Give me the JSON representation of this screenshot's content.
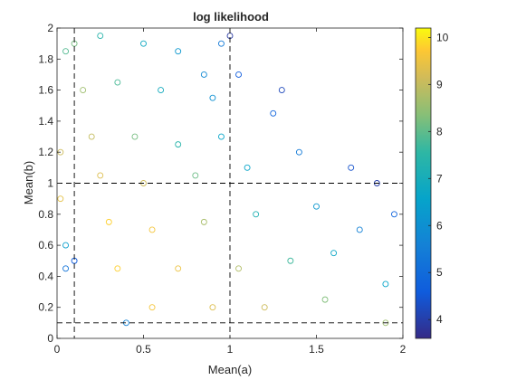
{
  "chart_data": {
    "type": "scatter",
    "title": "log likelihood",
    "xlabel": "Mean(a)",
    "ylabel": "Mean(b)",
    "xlim": [
      0,
      2
    ],
    "ylim": [
      0,
      2
    ],
    "xticks": [
      "0",
      "0.5",
      "1",
      "1.5",
      "2"
    ],
    "yticks": [
      "0",
      "0.2",
      "0.4",
      "0.6",
      "0.8",
      "1",
      "1.2",
      "1.4",
      "1.6",
      "1.8",
      "2"
    ],
    "colorbar": {
      "min": 3.6,
      "max": 10.2,
      "ticks": [
        "4",
        "5",
        "6",
        "7",
        "8",
        "9",
        "10"
      ],
      "colormap": "parula"
    },
    "reference_lines": {
      "vertical_x": [
        0.1,
        1
      ],
      "horizontal_y": [
        0.1,
        1
      ],
      "style": "dashed",
      "color": "#000000"
    },
    "marker": "open-circle",
    "grid": false,
    "points": [
      [
        0.1,
        1.9,
        8.2
      ],
      [
        0.25,
        1.95,
        7.4
      ],
      [
        0.5,
        1.9,
        6.8
      ],
      [
        0.7,
        1.85,
        6.2
      ],
      [
        0.95,
        1.9,
        5.4
      ],
      [
        0.15,
        1.6,
        8.6
      ],
      [
        0.35,
        1.65,
        7.8
      ],
      [
        0.6,
        1.6,
        6.9
      ],
      [
        0.9,
        1.55,
        6.0
      ],
      [
        1.05,
        1.7,
        4.6
      ],
      [
        0.2,
        1.3,
        9.0
      ],
      [
        0.45,
        1.3,
        8.2
      ],
      [
        0.7,
        1.25,
        7.4
      ],
      [
        0.95,
        1.3,
        6.6
      ],
      [
        1.25,
        1.45,
        4.8
      ],
      [
        0.25,
        1.05,
        9.3
      ],
      [
        0.5,
        1.0,
        9.1
      ],
      [
        0.8,
        1.05,
        8.1
      ],
      [
        1.1,
        1.1,
        6.6
      ],
      [
        1.4,
        1.2,
        5.4
      ],
      [
        0.3,
        0.75,
        9.8
      ],
      [
        0.55,
        0.7,
        9.6
      ],
      [
        0.85,
        0.75,
        8.7
      ],
      [
        1.15,
        0.8,
        7.2
      ],
      [
        1.5,
        0.85,
        6.2
      ],
      [
        0.35,
        0.45,
        9.8
      ],
      [
        0.7,
        0.45,
        9.5
      ],
      [
        1.05,
        0.45,
        8.8
      ],
      [
        1.35,
        0.5,
        7.7
      ],
      [
        1.75,
        0.7,
        5.6
      ],
      [
        0.55,
        0.2,
        9.6
      ],
      [
        0.9,
        0.2,
        9.3
      ],
      [
        1.2,
        0.2,
        9.1
      ],
      [
        1.55,
        0.25,
        8.3
      ],
      [
        1.9,
        0.35,
        6.6
      ],
      [
        0.05,
        0.45,
        5.2
      ],
      [
        0.1,
        0.5,
        4.6
      ],
      [
        0.05,
        0.6,
        6.4
      ],
      [
        0.4,
        0.1,
        5.6
      ],
      [
        1.9,
        0.1,
        8.6
      ],
      [
        1.7,
        1.1,
        4.4
      ],
      [
        1.85,
        1.0,
        4.0
      ],
      [
        1.95,
        0.8,
        4.8
      ],
      [
        1.6,
        0.55,
        6.7
      ],
      [
        1.3,
        1.6,
        4.2
      ],
      [
        1.0,
        1.95,
        3.9
      ],
      [
        0.85,
        1.7,
        5.8
      ],
      [
        0.05,
        1.85,
        7.9
      ],
      [
        0.02,
        1.2,
        9.1
      ],
      [
        0.02,
        0.9,
        9.4
      ]
    ]
  }
}
